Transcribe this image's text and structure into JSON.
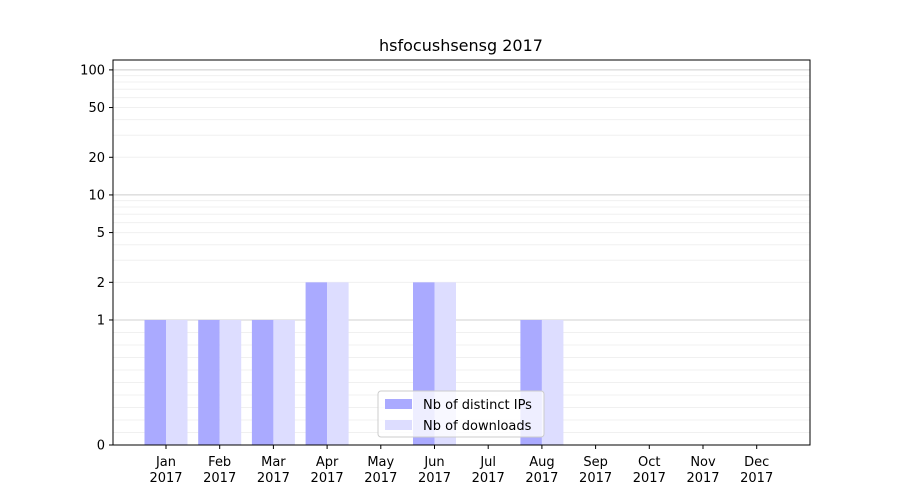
{
  "chart_data": {
    "type": "bar",
    "title": "hsfocushsensg 2017",
    "xlabel": "",
    "ylabel": "",
    "y_scale": "symlog",
    "ylim": [
      0,
      120
    ],
    "y_ticks": [
      0,
      1,
      2,
      5,
      10,
      20,
      50,
      100
    ],
    "y_tick_labels": [
      "0",
      "1",
      "2",
      "5",
      "10",
      "20",
      "50",
      "100"
    ],
    "categories": [
      "Jan\n2017",
      "Feb\n2017",
      "Mar\n2017",
      "Apr\n2017",
      "May\n2017",
      "Jun\n2017",
      "Jul\n2017",
      "Aug\n2017",
      "Sep\n2017",
      "Oct\n2017",
      "Nov\n2017",
      "Dec\n2017"
    ],
    "series": [
      {
        "name": "Nb of distinct IPs",
        "color": "#aaaaff",
        "values": [
          1,
          1,
          1,
          2,
          0,
          2,
          0,
          1,
          0,
          0,
          0,
          0
        ]
      },
      {
        "name": "Nb of downloads",
        "color": "#ddddff",
        "values": [
          1,
          1,
          1,
          2,
          0,
          2,
          0,
          1,
          0,
          0,
          0,
          0
        ]
      }
    ],
    "grid": true,
    "legend_position": "lower-center"
  }
}
